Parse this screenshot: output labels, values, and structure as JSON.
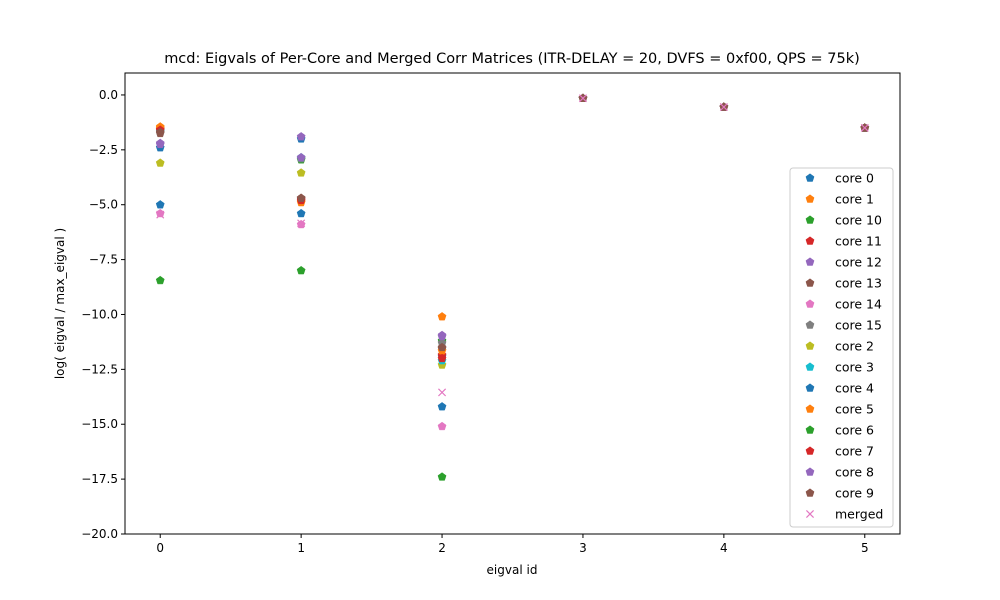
{
  "chart_data": {
    "type": "scatter",
    "title": "mcd: Eigvals of Per-Core and Merged Corr Matrices (ITR-DELAY = 20, DVFS = 0xf00, QPS = 75k)",
    "xlabel": "eigval id",
    "ylabel": "log( eigval / max_eigval )",
    "xlim": [
      -0.25,
      5.25
    ],
    "ylim": [
      -20,
      1.0
    ],
    "xticks": [
      0,
      1,
      2,
      3,
      4,
      5
    ],
    "xtick_labels": [
      "0",
      "1",
      "2",
      "3",
      "4",
      "5"
    ],
    "yticks": [
      0,
      -2.5,
      -5,
      -7.5,
      -10,
      -12.5,
      -15,
      -17.5,
      -20
    ],
    "ytick_labels": [
      "0.0",
      "−2.5",
      "−5.0",
      "−7.5",
      "−10.0",
      "−12.5",
      "−15.0",
      "−17.5",
      "−20.0"
    ],
    "grid": false,
    "legend_position": "lower-right",
    "series": [
      {
        "name": "core 0",
        "marker": "pentagon",
        "color": "#1f77b4",
        "x": [
          0,
          1,
          2,
          3,
          4,
          5
        ],
        "y": [
          -2.4,
          -2.0,
          -11.9,
          -0.15,
          -0.55,
          -1.5
        ]
      },
      {
        "name": "core 1",
        "marker": "pentagon",
        "color": "#ff7f0e",
        "x": [
          0,
          1,
          2,
          3,
          4,
          5
        ],
        "y": [
          -1.45,
          -4.9,
          -10.1,
          -0.15,
          -0.55,
          -1.5
        ]
      },
      {
        "name": "core 10",
        "marker": "pentagon",
        "color": "#2ca02c",
        "x": [
          0,
          1,
          2,
          3,
          4,
          5
        ],
        "y": [
          -1.6,
          -2.95,
          -11.2,
          -0.15,
          -0.55,
          -1.5
        ]
      },
      {
        "name": "core 11",
        "marker": "pentagon",
        "color": "#d62728",
        "x": [
          0,
          1,
          2,
          3,
          4,
          5
        ],
        "y": [
          -1.55,
          -4.75,
          -11.85,
          -0.15,
          -0.55,
          -1.5
        ]
      },
      {
        "name": "core 12",
        "marker": "pentagon",
        "color": "#9467bd",
        "x": [
          0,
          1,
          2,
          3,
          4,
          5
        ],
        "y": [
          -2.25,
          -1.9,
          -10.95,
          -0.15,
          -0.55,
          -1.5
        ]
      },
      {
        "name": "core 13",
        "marker": "pentagon",
        "color": "#8c564b",
        "x": [
          0,
          1,
          2,
          3,
          4,
          5
        ],
        "y": [
          -1.75,
          -4.7,
          -11.55,
          -0.15,
          -0.55,
          -1.5
        ]
      },
      {
        "name": "core 14",
        "marker": "pentagon",
        "color": "#e377c2",
        "x": [
          0,
          1,
          2,
          3,
          4,
          5
        ],
        "y": [
          -5.4,
          -5.9,
          -15.1,
          -0.15,
          -0.55,
          -1.5
        ]
      },
      {
        "name": "core 15",
        "marker": "pentagon",
        "color": "#7f7f7f",
        "x": [
          0,
          1,
          2,
          3,
          4,
          5
        ],
        "y": [
          -1.7,
          -2.9,
          -11.3,
          -0.15,
          -0.55,
          -1.5
        ]
      },
      {
        "name": "core 2",
        "marker": "pentagon",
        "color": "#bcbd22",
        "x": [
          0,
          1,
          2,
          3,
          4,
          5
        ],
        "y": [
          -3.1,
          -3.55,
          -12.3,
          -0.15,
          -0.55,
          -1.5
        ]
      },
      {
        "name": "core 3",
        "marker": "pentagon",
        "color": "#17becf",
        "x": [
          0,
          1,
          2,
          3,
          4,
          5
        ],
        "y": [
          -1.65,
          -2.85,
          -12.1,
          -0.15,
          -0.55,
          -1.5
        ]
      },
      {
        "name": "core 4",
        "marker": "pentagon",
        "color": "#1f77b4",
        "x": [
          0,
          1,
          2,
          3,
          4,
          5
        ],
        "y": [
          -5.0,
          -5.4,
          -14.2,
          -0.15,
          -0.55,
          -1.5
        ]
      },
      {
        "name": "core 5",
        "marker": "pentagon",
        "color": "#ff7f0e",
        "x": [
          0,
          1,
          2,
          3,
          4,
          5
        ],
        "y": [
          -1.5,
          -4.85,
          -11.65,
          -0.15,
          -0.55,
          -1.5
        ]
      },
      {
        "name": "core 6",
        "marker": "pentagon",
        "color": "#2ca02c",
        "x": [
          0,
          1,
          2,
          3,
          4,
          5
        ],
        "y": [
          -8.45,
          -8.0,
          -17.4,
          -0.15,
          -0.55,
          -1.5
        ]
      },
      {
        "name": "core 7",
        "marker": "pentagon",
        "color": "#d62728",
        "x": [
          0,
          1,
          2,
          3,
          4,
          5
        ],
        "y": [
          -1.6,
          -4.8,
          -12.0,
          -0.15,
          -0.55,
          -1.5
        ]
      },
      {
        "name": "core 8",
        "marker": "pentagon",
        "color": "#9467bd",
        "x": [
          0,
          1,
          2,
          3,
          4,
          5
        ],
        "y": [
          -2.2,
          -2.85,
          -11.0,
          -0.15,
          -0.55,
          -1.5
        ]
      },
      {
        "name": "core 9",
        "marker": "pentagon",
        "color": "#8c564b",
        "x": [
          0,
          1,
          2,
          3,
          4,
          5
        ],
        "y": [
          -1.7,
          -4.7,
          -11.5,
          -0.15,
          -0.55,
          -1.5
        ]
      },
      {
        "name": "merged",
        "marker": "x",
        "color": "#e377c2",
        "x": [
          0,
          1,
          2,
          3,
          4,
          5
        ],
        "y": [
          -5.45,
          -5.85,
          -13.55,
          -0.15,
          -0.55,
          -1.5
        ]
      }
    ]
  }
}
